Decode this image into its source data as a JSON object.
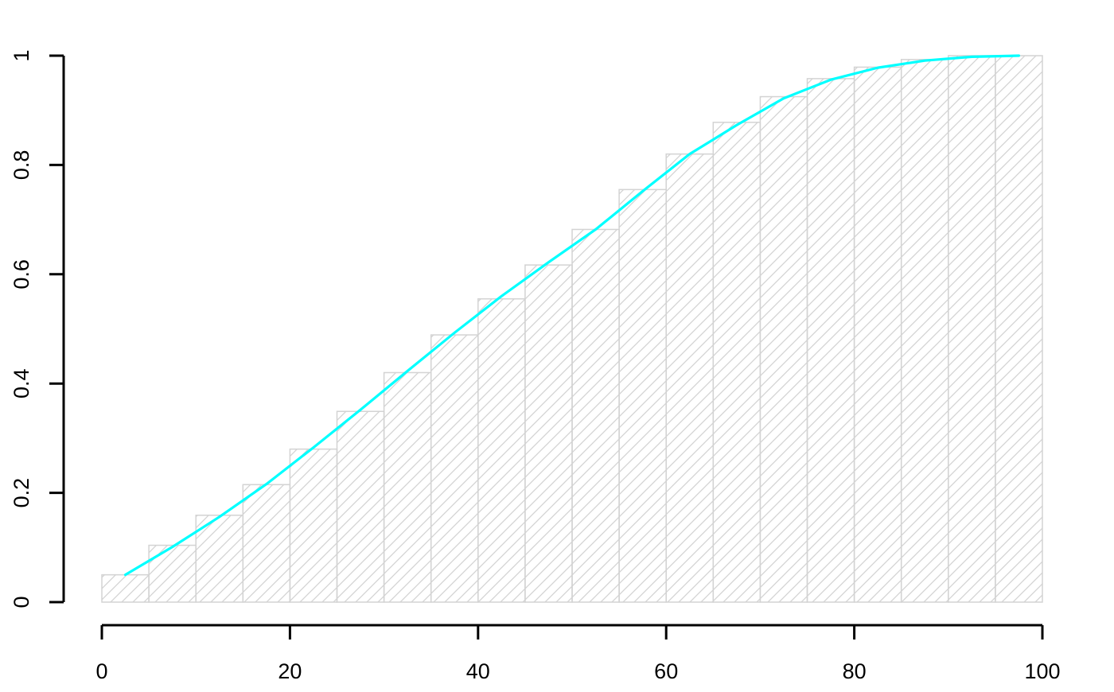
{
  "chart_data": {
    "type": "bar",
    "title": "",
    "xlabel": "",
    "ylabel": "",
    "xlim": [
      0,
      100
    ],
    "ylim": [
      0,
      1
    ],
    "grid": false,
    "legend": "none",
    "x_ticks": [
      "0",
      "20",
      "40",
      "60",
      "80",
      "100"
    ],
    "y_ticks": [
      "0",
      "0.2",
      "0.4",
      "0.6",
      "0.8",
      "1"
    ],
    "x_tick_values": [
      0,
      20,
      40,
      60,
      80,
      100
    ],
    "y_tick_values": [
      0,
      0.2,
      0.4,
      0.6,
      0.8,
      1
    ],
    "bin_width": 5,
    "bins": [
      {
        "start": 0,
        "end": 5,
        "value": 0.05
      },
      {
        "start": 5,
        "end": 10,
        "value": 0.104
      },
      {
        "start": 10,
        "end": 15,
        "value": 0.159
      },
      {
        "start": 15,
        "end": 20,
        "value": 0.215
      },
      {
        "start": 20,
        "end": 25,
        "value": 0.28
      },
      {
        "start": 25,
        "end": 30,
        "value": 0.349
      },
      {
        "start": 30,
        "end": 35,
        "value": 0.42
      },
      {
        "start": 35,
        "end": 40,
        "value": 0.489
      },
      {
        "start": 40,
        "end": 45,
        "value": 0.555
      },
      {
        "start": 45,
        "end": 50,
        "value": 0.617
      },
      {
        "start": 50,
        "end": 55,
        "value": 0.682
      },
      {
        "start": 55,
        "end": 60,
        "value": 0.755
      },
      {
        "start": 60,
        "end": 65,
        "value": 0.82
      },
      {
        "start": 65,
        "end": 70,
        "value": 0.878
      },
      {
        "start": 70,
        "end": 75,
        "value": 0.925
      },
      {
        "start": 75,
        "end": 80,
        "value": 0.958
      },
      {
        "start": 80,
        "end": 85,
        "value": 0.979
      },
      {
        "start": 85,
        "end": 90,
        "value": 0.993
      },
      {
        "start": 90,
        "end": 95,
        "value": 1.0
      },
      {
        "start": 95,
        "end": 100,
        "value": 1.0
      }
    ],
    "series": [
      {
        "type": "line",
        "x": [
          2.5,
          7.5,
          12.5,
          17.5,
          22.5,
          27.5,
          32.5,
          37.5,
          42.5,
          47.5,
          52.5,
          57.5,
          62.5,
          67.5,
          72.5,
          77.5,
          82.5,
          87.5,
          92.5,
          97.5
        ],
        "y": [
          0.05,
          0.101,
          0.156,
          0.216,
          0.283,
          0.352,
          0.423,
          0.493,
          0.56,
          0.622,
          0.682,
          0.752,
          0.82,
          0.873,
          0.922,
          0.956,
          0.978,
          0.991,
          0.998,
          1.0
        ]
      }
    ],
    "colors": {
      "bar_stroke": "#d3d3d3",
      "hatch": "#d3d3d3",
      "line": "#00ffff",
      "axis": "#000000",
      "background": "#ffffff"
    }
  }
}
